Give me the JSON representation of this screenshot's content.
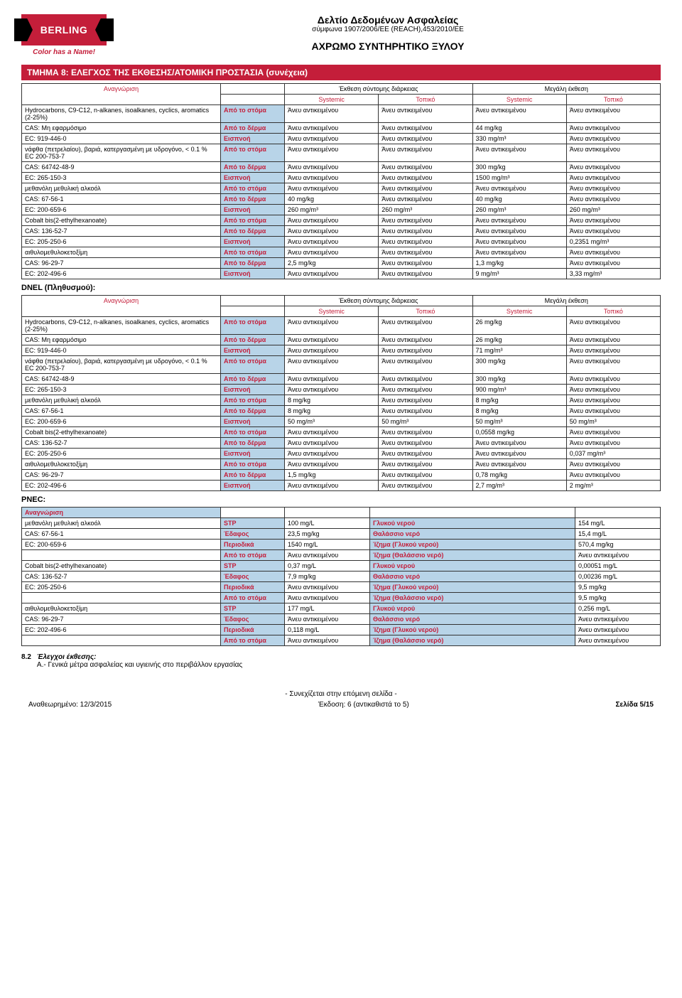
{
  "header": {
    "brand": "BERLING",
    "tagline": "Color has a Name!",
    "title1": "Δελτίο Δεδομένων Ασφαλείας",
    "subtitle1": "σύμφωνα 1907/2006/EE (REACH),453/2010/EE",
    "title2": "ΑΧΡΩΜΟ ΣΥΝΤΗΡΗΤΙΚΟ ΞΥΛΟΥ"
  },
  "section_title": "ΤΜΗΜΑ 8: ΕΛΕΓΧΟΣ ΤΗΣ ΕΚΘΕΣΗΣ/ΑΤΟΜΙΚΗ ΠΡΟΣΤΑΣΙΑ (συνέχεια)",
  "hdr": {
    "short_exp": "Έκθεση σύντομης διάρκειας",
    "long_exp": "Μεγάλη έκθεση",
    "ident": "Αναγνώριση",
    "systemic": "Systemic",
    "local": "Τοπικό"
  },
  "na": "Άνευ αντικειμένου",
  "routes": {
    "oral": "Από το στόμα",
    "dermal": "Από το δέρμα",
    "inhal": "Εισπνοή"
  },
  "t1": [
    {
      "id": "Hydrocarbons, C9-C12, n-alkanes, isoalkanes, cyclics, aromatics (2-25%)",
      "rows": [
        {
          "r": "oral",
          "v": [
            "na",
            "na",
            "na",
            "na"
          ]
        },
        {
          "pre": "CAS: Μη εφαρμόσιμο",
          "r": "dermal",
          "v": [
            "na",
            "na",
            "44 mg/kg",
            "na"
          ]
        },
        {
          "pre": "EC: 919-446-0",
          "r": "inhal",
          "v": [
            "na",
            "na",
            "330 mg/m³",
            "na"
          ]
        }
      ]
    },
    {
      "id": "νάφθα (πετρελαίου), βαριά, κατεργασμένη με υδρογόνο, < 0.1 % EC 200-753-7",
      "rows": [
        {
          "r": "oral",
          "v": [
            "na",
            "na",
            "na",
            "na"
          ]
        },
        {
          "pre": "CAS: 64742-48-9",
          "r": "dermal",
          "v": [
            "na",
            "na",
            "300 mg/kg",
            "na"
          ]
        },
        {
          "pre": "EC: 265-150-3",
          "r": "inhal",
          "v": [
            "na",
            "na",
            "1500 mg/m³",
            "na"
          ]
        }
      ]
    },
    {
      "id": "μεθανόλη μεθυλική αλκοόλ",
      "rows": [
        {
          "r": "oral",
          "v": [
            "na",
            "na",
            "na",
            "na"
          ]
        },
        {
          "pre": "CAS: 67-56-1",
          "r": "dermal",
          "v": [
            "40 mg/kg",
            "na",
            "40 mg/kg",
            "na"
          ]
        },
        {
          "pre": "EC: 200-659-6",
          "r": "inhal",
          "v": [
            "260 mg/m³",
            "260 mg/m³",
            "260 mg/m³",
            "260 mg/m³"
          ]
        }
      ]
    },
    {
      "id": "Cobalt bis(2-ethylhexanoate)",
      "rows": [
        {
          "r": "oral",
          "v": [
            "na",
            "na",
            "na",
            "na"
          ]
        },
        {
          "pre": "CAS: 136-52-7",
          "r": "dermal",
          "v": [
            "na",
            "na",
            "na",
            "na"
          ]
        },
        {
          "pre": "EC: 205-250-6",
          "r": "inhal",
          "v": [
            "na",
            "na",
            "na",
            "0,2351 mg/m³"
          ]
        }
      ]
    },
    {
      "id": "αιθυλομεθυλοκετοξίμη",
      "rows": [
        {
          "r": "oral",
          "v": [
            "na",
            "na",
            "na",
            "na"
          ]
        },
        {
          "pre": "CAS: 96-29-7",
          "r": "dermal",
          "v": [
            "2,5 mg/kg",
            "na",
            "1,3 mg/kg",
            "na"
          ]
        },
        {
          "pre": "EC: 202-496-6",
          "r": "inhal",
          "v": [
            "na",
            "na",
            "9 mg/m³",
            "3,33 mg/m³"
          ]
        }
      ]
    }
  ],
  "dnel_label": "DNEL (Πληθυσμού):",
  "t2": [
    {
      "id": "Hydrocarbons, C9-C12, n-alkanes, isoalkanes, cyclics, aromatics (2-25%)",
      "rows": [
        {
          "r": "oral",
          "v": [
            "na",
            "na",
            "26 mg/kg",
            "na"
          ]
        },
        {
          "pre": "CAS: Μη εφαρμόσιμο",
          "r": "dermal",
          "v": [
            "na",
            "na",
            "26 mg/kg",
            "na"
          ]
        },
        {
          "pre": "EC: 919-446-0",
          "r": "inhal",
          "v": [
            "na",
            "na",
            "71 mg/m³",
            "na"
          ]
        }
      ]
    },
    {
      "id": "νάφθα (πετρελαίου), βαριά, κατεργασμένη με υδρογόνο, < 0.1 % EC 200-753-7",
      "rows": [
        {
          "r": "oral",
          "v": [
            "na",
            "na",
            "300 mg/kg",
            "na"
          ]
        },
        {
          "pre": "CAS: 64742-48-9",
          "r": "dermal",
          "v": [
            "na",
            "na",
            "300 mg/kg",
            "na"
          ]
        },
        {
          "pre": "EC: 265-150-3",
          "r": "inhal",
          "v": [
            "na",
            "na",
            "900 mg/m³",
            "na"
          ]
        }
      ]
    },
    {
      "id": "μεθανόλη μεθυλική αλκοόλ",
      "rows": [
        {
          "r": "oral",
          "v": [
            "8 mg/kg",
            "na",
            "8 mg/kg",
            "na"
          ]
        },
        {
          "pre": "CAS: 67-56-1",
          "r": "dermal",
          "v": [
            "8 mg/kg",
            "na",
            "8 mg/kg",
            "na"
          ]
        },
        {
          "pre": "EC: 200-659-6",
          "r": "inhal",
          "v": [
            "50 mg/m³",
            "50 mg/m³",
            "50 mg/m³",
            "50 mg/m³"
          ]
        }
      ]
    },
    {
      "id": "Cobalt bis(2-ethylhexanoate)",
      "rows": [
        {
          "r": "oral",
          "v": [
            "na",
            "na",
            "0,0558 mg/kg",
            "na"
          ]
        },
        {
          "pre": "CAS: 136-52-7",
          "r": "dermal",
          "v": [
            "na",
            "na",
            "na",
            "na"
          ]
        },
        {
          "pre": "EC: 205-250-6",
          "r": "inhal",
          "v": [
            "na",
            "na",
            "na",
            "0,037 mg/m³"
          ]
        }
      ]
    },
    {
      "id": "αιθυλομεθυλοκετοξίμη",
      "rows": [
        {
          "r": "oral",
          "v": [
            "na",
            "na",
            "na",
            "na"
          ]
        },
        {
          "pre": "CAS: 96-29-7",
          "r": "dermal",
          "v": [
            "1,5 mg/kg",
            "na",
            "0,78 mg/kg",
            "na"
          ]
        },
        {
          "pre": "EC: 202-496-6",
          "r": "inhal",
          "v": [
            "na",
            "na",
            "2,7 mg/m³",
            "2 mg/m³"
          ]
        }
      ]
    }
  ],
  "pnec_label": "PNEC:",
  "pnec_routes": {
    "stp": "STP",
    "soil": "Έδαφος",
    "periodic": "Περιοδικά",
    "oral": "Από το στόμα",
    "fresh": "Γλυκού νερού",
    "marine": "Θαλάσσιο νερό",
    "fsed": "Ίζημα (Γλυκού νερού)",
    "msed": "Ίζημα (Θαλάσσιο νερό)"
  },
  "t3": [
    {
      "id": "μεθανόλη μεθυλική αλκοόλ",
      "rows": [
        {
          "r": "stp",
          "v1": "100 mg/L",
          "c": "fresh",
          "v2": "154 mg/L"
        },
        {
          "pre": "CAS: 67-56-1",
          "r": "soil",
          "v1": "23,5 mg/kg",
          "c": "marine",
          "v2": "15,4 mg/L"
        },
        {
          "pre": "EC: 200-659-6",
          "r": "periodic",
          "v1": "1540 mg/L",
          "c": "fsed",
          "v2": "570,4 mg/kg"
        },
        {
          "r": "oral",
          "v1": "na",
          "c": "msed",
          "v2": "na"
        }
      ]
    },
    {
      "id": "Cobalt bis(2-ethylhexanoate)",
      "rows": [
        {
          "r": "stp",
          "v1": "0,37 mg/L",
          "c": "fresh",
          "v2": "0,00051 mg/L"
        },
        {
          "pre": "CAS: 136-52-7",
          "r": "soil",
          "v1": "7,9 mg/kg",
          "c": "marine",
          "v2": "0,00236 mg/L"
        },
        {
          "pre": "EC: 205-250-6",
          "r": "periodic",
          "v1": "na",
          "c": "fsed",
          "v2": "9,5 mg/kg"
        },
        {
          "r": "oral",
          "v1": "na",
          "c": "msed",
          "v2": "9,5 mg/kg"
        }
      ]
    },
    {
      "id": "αιθυλομεθυλοκετοξίμη",
      "rows": [
        {
          "r": "stp",
          "v1": "177 mg/L",
          "c": "fresh",
          "v2": "0,256 mg/L"
        },
        {
          "pre": "CAS: 96-29-7",
          "r": "soil",
          "v1": "na",
          "c": "marine",
          "v2": "na"
        },
        {
          "pre": "EC: 202-496-6",
          "r": "periodic",
          "v1": "0,118 mg/L",
          "c": "fsed",
          "v2": "na"
        },
        {
          "r": "oral",
          "v1": "na",
          "c": "msed",
          "v2": "na"
        }
      ]
    }
  ],
  "sec82_num": "8.2",
  "sec82_title": "Έλεγχοι έκθεσης:",
  "sec82_line": "A.- Γενικά μέτρα ασφαλείας και υγιεινής στο περιβάλλον εργασίας",
  "footer": {
    "cont": "- Συνεχίζεται στην επόμενη σελίδα -",
    "rev": "Αναθεωρημένο: 12/3/2015",
    "ed": "Έκδοση: 6 (αντικαθιστά το 5)",
    "page": "Σελίδα 5/15"
  }
}
